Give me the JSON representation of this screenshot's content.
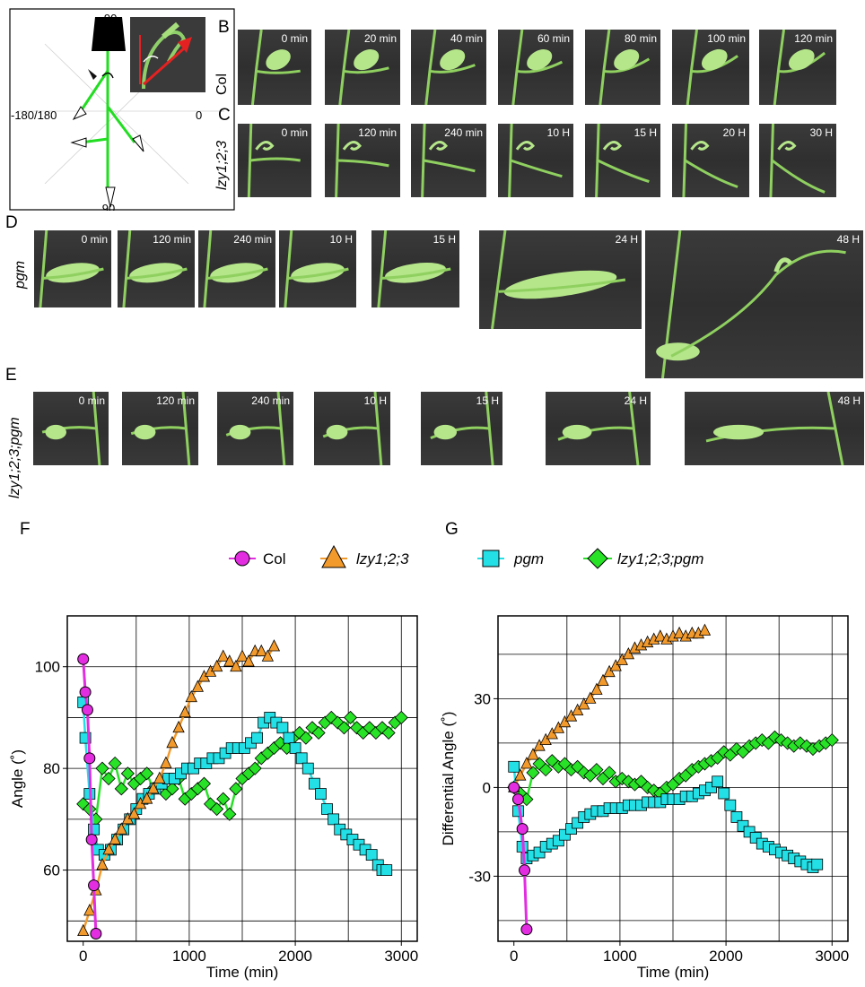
{
  "panels": {
    "A": {
      "label": "A",
      "top_label": "-90",
      "left_label": "-180/180",
      "right_label": "0",
      "bottom_label": "90"
    },
    "B": {
      "label": "B",
      "genotype": "Col",
      "times": [
        "0 min",
        "20 min",
        "40 min",
        "60 min",
        "80 min",
        "100 min",
        "120 min"
      ]
    },
    "C": {
      "label": "C",
      "genotype": "lzy1;2;3",
      "times": [
        "0 min",
        "120 min",
        "240 min",
        "10 H",
        "15 H",
        "20 H",
        "30 H"
      ]
    },
    "D": {
      "label": "D",
      "genotype": "pgm",
      "times": [
        "0 min",
        "120 min",
        "240 min",
        "10 H",
        "15 H",
        "24 H",
        "48 H"
      ]
    },
    "E": {
      "label": "E",
      "genotype": "lzy1;2;3;pgm",
      "times": [
        "0 min",
        "120 min",
        "240 min",
        "10 H",
        "15 H",
        "24 H",
        "48 H"
      ]
    },
    "F": {
      "label": "F"
    },
    "G": {
      "label": "G"
    }
  },
  "legend": {
    "items": [
      {
        "name": "Col",
        "italic": false
      },
      {
        "name": "lzy1;2;3",
        "italic": true
      },
      {
        "name": "pgm",
        "italic": true
      },
      {
        "name": "lzy1;2;3;pgm",
        "italic": true
      }
    ]
  },
  "colors": {
    "Col": "#e22ee0",
    "lzy": "#f39a2c",
    "pgm": "#22e0e6",
    "lzypgm": "#27e227",
    "stem": "#22dd22"
  },
  "chart_data": [
    {
      "type": "scatter",
      "xlabel": "Time (min)",
      "ylabel": "Angle (˚)",
      "xlim": [
        -150,
        3150
      ],
      "ylim": [
        46,
        110
      ],
      "xticks": [
        0,
        1000,
        2000,
        3000
      ],
      "yticks": [
        60,
        80,
        100
      ],
      "grid": true,
      "series": [
        {
          "name": "Col",
          "marker": "circle",
          "x": [
            0,
            20,
            40,
            60,
            80,
            100,
            120
          ],
          "y": [
            101.5,
            95,
            91.5,
            82,
            66,
            57,
            47.5
          ]
        },
        {
          "name": "lzy1;2;3",
          "marker": "triangle",
          "x": [
            0,
            60,
            120,
            180,
            240,
            300,
            360,
            420,
            480,
            540,
            600,
            660,
            720,
            780,
            840,
            900,
            960,
            1020,
            1080,
            1140,
            1200,
            1260,
            1320,
            1380,
            1440,
            1500,
            1560,
            1620,
            1680,
            1740,
            1800
          ],
          "y": [
            48,
            52,
            56,
            61,
            64,
            66,
            68,
            70,
            71,
            73,
            74,
            76,
            78,
            81,
            85,
            88,
            91,
            94,
            96,
            98,
            99,
            100,
            102,
            101,
            100,
            102,
            101,
            103,
            103,
            102,
            104
          ]
        },
        {
          "name": "pgm",
          "marker": "square",
          "x": [
            0,
            20,
            60,
            100,
            140,
            200,
            260,
            320,
            380,
            440,
            500,
            560,
            620,
            680,
            740,
            800,
            860,
            920,
            980,
            1040,
            1100,
            1160,
            1220,
            1280,
            1340,
            1400,
            1460,
            1520,
            1580,
            1640,
            1700,
            1760,
            1820,
            1880,
            1940,
            2000,
            2060,
            2120,
            2180,
            2240,
            2300,
            2360,
            2420,
            2480,
            2540,
            2600,
            2660,
            2720,
            2780,
            2820,
            2860
          ],
          "y": [
            93,
            86,
            75,
            68,
            64,
            63,
            64,
            66,
            68,
            70,
            72,
            74,
            75,
            76,
            77,
            78,
            78,
            79,
            80,
            80,
            81,
            81,
            82,
            82,
            83,
            84,
            84,
            84,
            85,
            86,
            89,
            90,
            89,
            88,
            86,
            84,
            82,
            80,
            77,
            75,
            72,
            70,
            68,
            67,
            66,
            65,
            64,
            63,
            61,
            60,
            60
          ]
        },
        {
          "name": "lzy1;2;3;pgm",
          "marker": "diamond",
          "x": [
            0,
            60,
            120,
            180,
            240,
            300,
            360,
            420,
            480,
            540,
            600,
            660,
            720,
            780,
            840,
            900,
            960,
            1020,
            1080,
            1140,
            1200,
            1260,
            1320,
            1380,
            1440,
            1500,
            1560,
            1620,
            1680,
            1740,
            1800,
            1860,
            1920,
            1980,
            2040,
            2100,
            2160,
            2220,
            2280,
            2340,
            2400,
            2460,
            2520,
            2580,
            2640,
            2700,
            2760,
            2820,
            2880,
            2940,
            3000
          ],
          "y": [
            73,
            72,
            70,
            80,
            78,
            81,
            76,
            79,
            77,
            78,
            79,
            76,
            77,
            75,
            76,
            78,
            74,
            75,
            76,
            77,
            73,
            72,
            74,
            71,
            76,
            78,
            79,
            80,
            82,
            83,
            84,
            85,
            84,
            86,
            87,
            86,
            88,
            87,
            89,
            90,
            89,
            88,
            90,
            88,
            87,
            88,
            87,
            88,
            87,
            89,
            90
          ]
        }
      ]
    },
    {
      "type": "scatter",
      "xlabel": "Time (min)",
      "ylabel": "Differential Angle (˚)",
      "xlim": [
        -150,
        3150
      ],
      "ylim": [
        -52,
        58
      ],
      "xticks": [
        0,
        1000,
        2000,
        3000
      ],
      "yticks": [
        -30,
        0,
        30
      ],
      "grid": true,
      "series": [
        {
          "name": "Col",
          "marker": "circle",
          "x": [
            0,
            40,
            80,
            100,
            120
          ],
          "y": [
            0,
            -4,
            -14,
            -28,
            -48
          ]
        },
        {
          "name": "lzy1;2;3",
          "marker": "triangle",
          "x": [
            0,
            60,
            120,
            180,
            240,
            300,
            360,
            420,
            480,
            540,
            600,
            660,
            720,
            780,
            840,
            900,
            960,
            1020,
            1080,
            1140,
            1200,
            1260,
            1320,
            1380,
            1440,
            1500,
            1560,
            1620,
            1680,
            1740,
            1800
          ],
          "y": [
            0,
            4,
            8,
            11,
            14,
            16,
            18,
            20,
            22,
            24,
            26,
            28,
            30,
            33,
            36,
            39,
            41,
            43,
            45,
            47,
            48,
            49,
            50,
            51,
            50,
            51,
            52,
            51,
            52,
            52,
            53
          ]
        },
        {
          "name": "pgm",
          "marker": "square",
          "x": [
            0,
            40,
            80,
            120,
            180,
            240,
            300,
            360,
            420,
            480,
            540,
            600,
            660,
            720,
            780,
            840,
            900,
            960,
            1020,
            1080,
            1140,
            1200,
            1260,
            1320,
            1380,
            1440,
            1500,
            1560,
            1620,
            1680,
            1740,
            1800,
            1860,
            1920,
            1980,
            2040,
            2100,
            2160,
            2220,
            2280,
            2340,
            2400,
            2460,
            2520,
            2580,
            2640,
            2700,
            2760,
            2820,
            2860
          ],
          "y": [
            7,
            -8,
            -20,
            -24,
            -23,
            -22,
            -20,
            -19,
            -18,
            -16,
            -14,
            -12,
            -10,
            -9,
            -8,
            -8,
            -7,
            -7,
            -7,
            -6,
            -6,
            -6,
            -5,
            -5,
            -5,
            -4,
            -4,
            -4,
            -3,
            -3,
            -2,
            -1,
            0,
            2,
            -2,
            -6,
            -10,
            -13,
            -15,
            -17,
            -19,
            -20,
            -21,
            -22,
            -23,
            -24,
            -25,
            -26,
            -27,
            -26
          ]
        },
        {
          "name": "lzy1;2;3;pgm",
          "marker": "diamond",
          "x": [
            0,
            60,
            120,
            180,
            240,
            300,
            360,
            420,
            480,
            540,
            600,
            660,
            720,
            780,
            840,
            900,
            960,
            1020,
            1080,
            1140,
            1200,
            1260,
            1320,
            1380,
            1440,
            1500,
            1560,
            1620,
            1680,
            1740,
            1800,
            1860,
            1920,
            1980,
            2040,
            2100,
            2160,
            2220,
            2280,
            2340,
            2400,
            2460,
            2520,
            2580,
            2640,
            2700,
            2760,
            2820,
            2880,
            2940,
            3000
          ],
          "y": [
            0,
            -2,
            -4,
            5,
            8,
            6,
            9,
            7,
            8,
            6,
            7,
            5,
            4,
            6,
            3,
            5,
            2,
            3,
            2,
            1,
            2,
            0,
            -1,
            -2,
            0,
            1,
            3,
            4,
            6,
            7,
            8,
            9,
            10,
            12,
            11,
            13,
            12,
            14,
            15,
            16,
            15,
            17,
            16,
            15,
            14,
            15,
            14,
            13,
            14,
            15,
            16
          ]
        }
      ]
    }
  ]
}
